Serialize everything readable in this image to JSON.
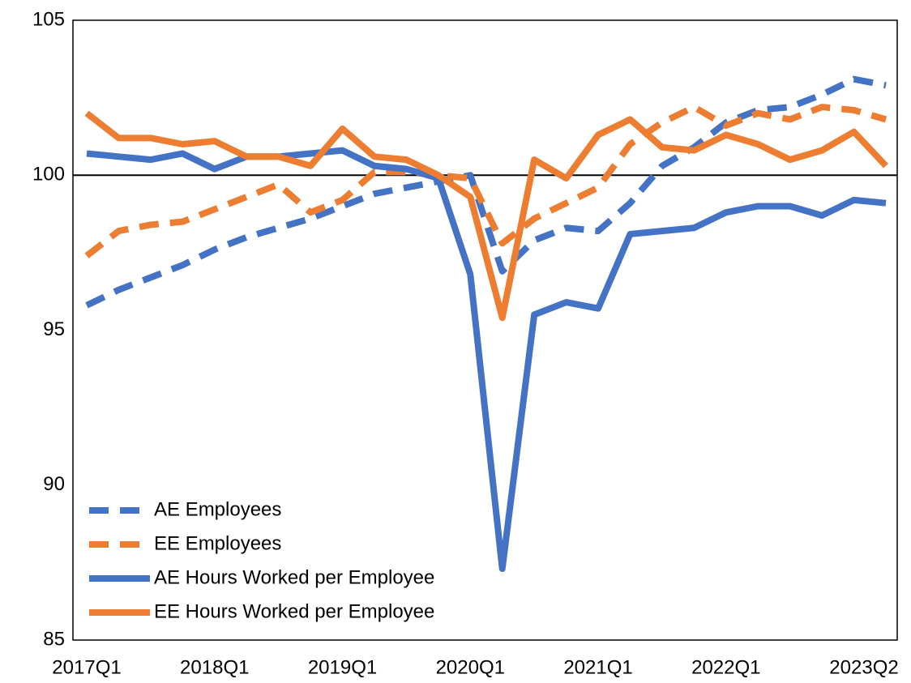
{
  "chart_data": {
    "type": "line",
    "categories": [
      "2017Q1",
      null,
      null,
      null,
      "2018Q1",
      null,
      null,
      null,
      "2019Q1",
      null,
      null,
      null,
      "2020Q1",
      null,
      null,
      null,
      "2021Q1",
      null,
      null,
      null,
      "2022Q1",
      null,
      null,
      null,
      null,
      "2023Q2"
    ],
    "series": [
      {
        "name": "AE Employees",
        "color": "#4472c4",
        "dashed": true,
        "values": [
          95.8,
          96.3,
          96.7,
          97.1,
          97.6,
          98.0,
          98.3,
          98.6,
          99.0,
          99.4,
          99.6,
          99.8,
          100.0,
          96.9,
          97.9,
          98.3,
          98.2,
          99.1,
          100.3,
          100.9,
          101.7,
          102.1,
          102.2,
          102.6,
          103.1,
          102.9
        ]
      },
      {
        "name": "EE Employees",
        "color": "#ed7d31",
        "dashed": true,
        "values": [
          97.4,
          98.2,
          98.4,
          98.5,
          98.9,
          99.3,
          99.7,
          98.8,
          99.2,
          100.1,
          100.1,
          100.0,
          99.9,
          97.8,
          98.6,
          99.1,
          99.6,
          101.0,
          101.7,
          102.2,
          101.6,
          102.0,
          101.8,
          102.2,
          102.1,
          101.8
        ]
      },
      {
        "name": "AE Hours Worked per Employee",
        "color": "#4472c4",
        "dashed": false,
        "values": [
          100.7,
          100.6,
          100.5,
          100.7,
          100.2,
          100.6,
          100.6,
          100.7,
          100.8,
          100.3,
          100.2,
          99.9,
          96.8,
          87.3,
          95.5,
          95.9,
          95.7,
          98.1,
          98.2,
          98.3,
          98.8,
          99.0,
          99.0,
          98.7,
          99.2,
          99.1
        ]
      },
      {
        "name": "EE Hours Worked per Employee",
        "color": "#ed7d31",
        "dashed": false,
        "values": [
          102.0,
          101.2,
          101.2,
          101.0,
          101.1,
          100.6,
          100.6,
          100.3,
          101.5,
          100.6,
          100.5,
          100.0,
          99.3,
          95.4,
          100.5,
          99.9,
          101.3,
          101.8,
          100.9,
          100.8,
          101.3,
          101.0,
          100.5,
          100.8,
          101.4,
          100.3
        ]
      }
    ],
    "ylim": [
      85,
      105
    ],
    "yticks": [
      85,
      90,
      95,
      100,
      105
    ],
    "reference_line": 100,
    "legend": "lower left",
    "grid": false
  }
}
